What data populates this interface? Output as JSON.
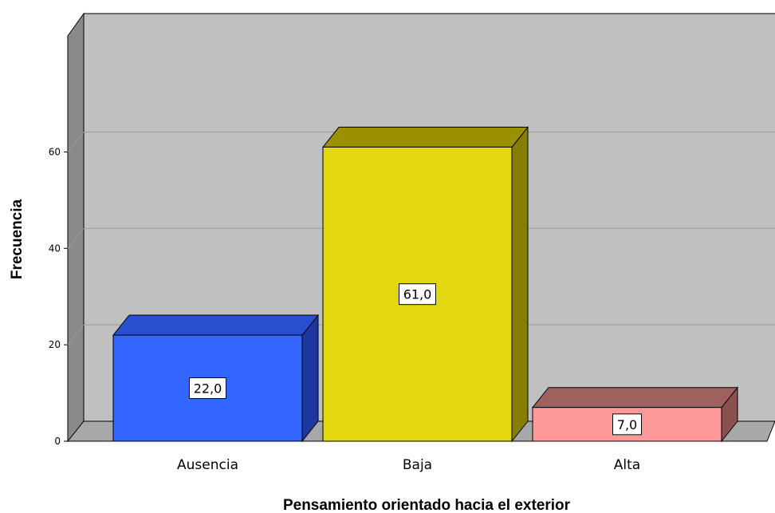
{
  "chart_data": {
    "type": "bar",
    "categories": [
      "Ausencia",
      "Baja",
      "Alta"
    ],
    "values": [
      22.0,
      61.0,
      7.0
    ],
    "data_labels": [
      "22,0",
      "61,0",
      "7,0"
    ],
    "title": "",
    "xlabel": "Pensamiento orientado hacia el exterior",
    "ylabel": "Frecuencia",
    "ylim": [
      0,
      70
    ],
    "yticks": [
      0,
      20,
      40,
      60
    ],
    "ytick_labels": [
      "0",
      "20",
      "40",
      "60"
    ],
    "grid": true,
    "three_d": true,
    "colors": {
      "bars": [
        "#3366ff",
        "#e3d70f",
        "#ff9999"
      ],
      "bar_tops": [
        "#2a4ed0",
        "#9a9000",
        "#a06060"
      ],
      "bar_sides": [
        "#1c37a0",
        "#857e00",
        "#8c5050"
      ],
      "plot_back": "#c0c0c0",
      "plot_wall": "#8a8a8a",
      "plot_floor": "#a8a8a8"
    }
  }
}
